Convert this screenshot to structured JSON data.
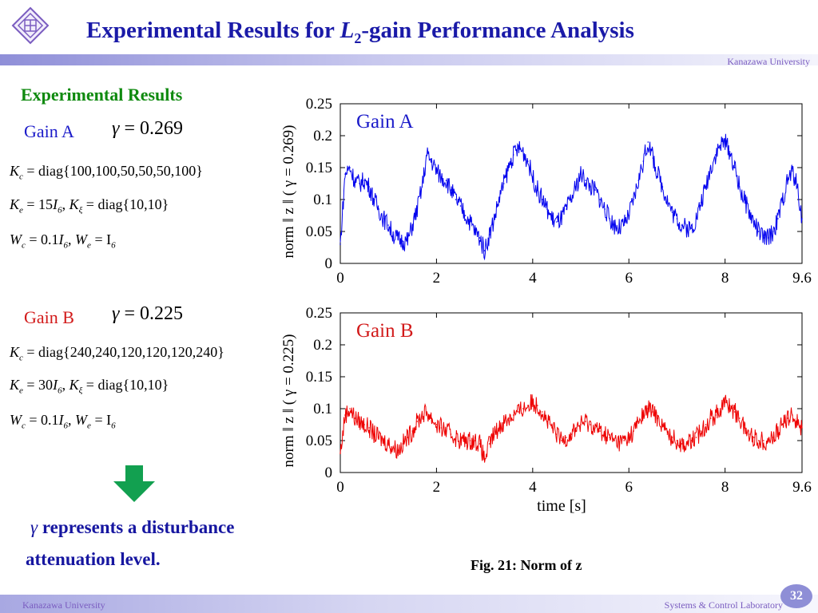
{
  "slide": {
    "title_prefix": "Experimental Results for ",
    "title_var": "L",
    "title_sub": "2",
    "title_suffix": "-gain Performance Analysis",
    "org_top": "Kanazawa University",
    "section": "Experimental Results",
    "gain_a": {
      "label": "Gain A",
      "gamma_symbol": "γ",
      "gamma_eq": " = 0.269",
      "kc": "= diag{100,100,50,50,50,100}",
      "ke_val": "= 15",
      "ke_i": "I",
      "ke_sub": "6",
      "kxi": "= diag{10,10}",
      "wc_val": "= 0.1",
      "we_rhs": "= I"
    },
    "gain_b": {
      "label": "Gain B",
      "gamma_symbol": "γ",
      "gamma_eq": " = 0.225",
      "kc": "= diag{240,240,120,120,120,240}",
      "ke_val": "= 30",
      "ke_i": "I",
      "ke_sub": "6",
      "kxi": "= diag{10,10}",
      "wc_val": "= 0.1",
      "we_rhs": "= I"
    },
    "note_line1": " represents a disturbance",
    "note_line2": "attenuation level.",
    "caption": "Fig. 21: Norm of  z",
    "org_bottom": "Kanazawa University",
    "lab": "Systems & Control Laboratory",
    "page_number": "32",
    "colors": {
      "title": "#1a1aa8",
      "green": "#0f8a0f",
      "series_a": "#0000ee",
      "series_b": "#ee0000",
      "arrow": "#12a050"
    }
  },
  "chart_data": [
    {
      "type": "line",
      "legend": "Gain A",
      "ylabel": "norm ‖ z ‖ ( γ = 0.269)",
      "xlabel": "",
      "xlim": [
        0,
        9.6
      ],
      "ylim": [
        0,
        0.25
      ],
      "x_ticks": [
        "0",
        "2",
        "4",
        "6",
        "8",
        "9.6"
      ],
      "y_ticks": [
        "0",
        "0.05",
        "0.1",
        "0.15",
        "0.2",
        "0.25"
      ],
      "series": [
        {
          "color": "#0000ee",
          "x": [
            0,
            0.1,
            0.2,
            0.3,
            0.4,
            0.5,
            0.6,
            0.7,
            0.8,
            0.9,
            1.0,
            1.1,
            1.2,
            1.3,
            1.4,
            1.5,
            1.6,
            1.7,
            1.8,
            1.9,
            2.0,
            2.1,
            2.2,
            2.3,
            2.4,
            2.5,
            2.6,
            2.7,
            2.8,
            2.9,
            3.0,
            3.1,
            3.2,
            3.3,
            3.4,
            3.5,
            3.6,
            3.7,
            3.8,
            3.9,
            4.0,
            4.1,
            4.2,
            4.3,
            4.4,
            4.5,
            4.6,
            4.7,
            4.8,
            4.9,
            5.0,
            5.1,
            5.2,
            5.3,
            5.4,
            5.5,
            5.6,
            5.7,
            5.8,
            5.9,
            6.0,
            6.1,
            6.2,
            6.3,
            6.4,
            6.5,
            6.6,
            6.7,
            6.8,
            6.9,
            7.0,
            7.1,
            7.2,
            7.3,
            7.4,
            7.5,
            7.6,
            7.7,
            7.8,
            7.9,
            8.0,
            8.1,
            8.2,
            8.3,
            8.4,
            8.5,
            8.6,
            8.7,
            8.8,
            8.9,
            9.0,
            9.1,
            9.2,
            9.3,
            9.4,
            9.5,
            9.6
          ],
          "y": [
            0.03,
            0.14,
            0.15,
            0.13,
            0.125,
            0.13,
            0.12,
            0.1,
            0.085,
            0.07,
            0.06,
            0.045,
            0.038,
            0.035,
            0.035,
            0.06,
            0.085,
            0.12,
            0.17,
            0.16,
            0.145,
            0.135,
            0.13,
            0.115,
            0.1,
            0.09,
            0.075,
            0.065,
            0.05,
            0.04,
            0.02,
            0.045,
            0.07,
            0.1,
            0.125,
            0.15,
            0.17,
            0.18,
            0.175,
            0.16,
            0.135,
            0.115,
            0.1,
            0.085,
            0.07,
            0.065,
            0.07,
            0.085,
            0.1,
            0.12,
            0.14,
            0.13,
            0.12,
            0.115,
            0.1,
            0.085,
            0.07,
            0.06,
            0.055,
            0.06,
            0.075,
            0.1,
            0.13,
            0.16,
            0.19,
            0.165,
            0.14,
            0.12,
            0.1,
            0.08,
            0.07,
            0.06,
            0.055,
            0.055,
            0.07,
            0.095,
            0.12,
            0.15,
            0.17,
            0.185,
            0.19,
            0.175,
            0.15,
            0.12,
            0.1,
            0.08,
            0.065,
            0.05,
            0.04,
            0.04,
            0.05,
            0.07,
            0.1,
            0.13,
            0.145,
            0.12,
            0.07
          ]
        }
      ]
    },
    {
      "type": "line",
      "legend": "Gain B",
      "ylabel": "norm ‖ z ‖ ( γ = 0.225)",
      "xlabel": "time [s]",
      "xlim": [
        0,
        9.6
      ],
      "ylim": [
        0,
        0.25
      ],
      "x_ticks": [
        "0",
        "2",
        "4",
        "6",
        "8",
        "9.6"
      ],
      "y_ticks": [
        "0",
        "0.05",
        "0.1",
        "0.15",
        "0.2",
        "0.25"
      ],
      "series": [
        {
          "color": "#ee0000",
          "x": [
            0,
            0.1,
            0.2,
            0.3,
            0.4,
            0.5,
            0.6,
            0.7,
            0.8,
            0.9,
            1.0,
            1.1,
            1.2,
            1.3,
            1.4,
            1.5,
            1.6,
            1.7,
            1.8,
            1.9,
            2.0,
            2.1,
            2.2,
            2.3,
            2.4,
            2.5,
            2.6,
            2.7,
            2.8,
            2.9,
            3.0,
            3.1,
            3.2,
            3.3,
            3.4,
            3.5,
            3.6,
            3.7,
            3.8,
            3.9,
            4.0,
            4.1,
            4.2,
            4.3,
            4.4,
            4.5,
            4.6,
            4.7,
            4.8,
            4.9,
            5.0,
            5.1,
            5.2,
            5.3,
            5.4,
            5.5,
            5.6,
            5.7,
            5.8,
            5.9,
            6.0,
            6.1,
            6.2,
            6.3,
            6.4,
            6.5,
            6.6,
            6.7,
            6.8,
            6.9,
            7.0,
            7.1,
            7.2,
            7.3,
            7.4,
            7.5,
            7.6,
            7.7,
            7.8,
            7.9,
            8.0,
            8.1,
            8.2,
            8.3,
            8.4,
            8.5,
            8.6,
            8.7,
            8.8,
            8.9,
            9.0,
            9.1,
            9.2,
            9.3,
            9.4,
            9.5,
            9.6
          ],
          "y": [
            0.03,
            0.09,
            0.1,
            0.085,
            0.08,
            0.075,
            0.07,
            0.06,
            0.055,
            0.05,
            0.045,
            0.04,
            0.035,
            0.045,
            0.055,
            0.065,
            0.08,
            0.09,
            0.095,
            0.085,
            0.075,
            0.07,
            0.065,
            0.06,
            0.055,
            0.05,
            0.05,
            0.05,
            0.05,
            0.045,
            0.02,
            0.045,
            0.06,
            0.07,
            0.08,
            0.085,
            0.09,
            0.095,
            0.1,
            0.105,
            0.11,
            0.105,
            0.095,
            0.08,
            0.07,
            0.06,
            0.05,
            0.055,
            0.06,
            0.07,
            0.075,
            0.08,
            0.075,
            0.07,
            0.065,
            0.06,
            0.055,
            0.05,
            0.048,
            0.05,
            0.055,
            0.065,
            0.08,
            0.09,
            0.1,
            0.095,
            0.085,
            0.075,
            0.06,
            0.055,
            0.05,
            0.045,
            0.045,
            0.05,
            0.055,
            0.065,
            0.075,
            0.085,
            0.09,
            0.1,
            0.11,
            0.105,
            0.095,
            0.085,
            0.07,
            0.06,
            0.055,
            0.05,
            0.05,
            0.05,
            0.055,
            0.065,
            0.075,
            0.085,
            0.09,
            0.08,
            0.07
          ]
        }
      ]
    }
  ]
}
